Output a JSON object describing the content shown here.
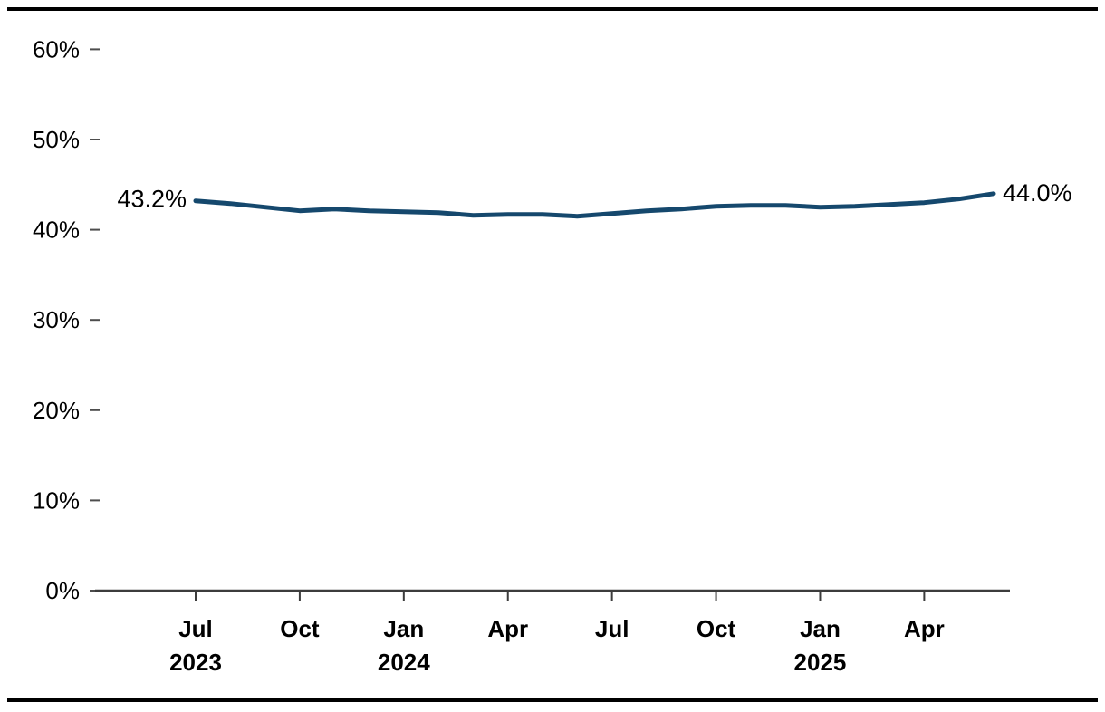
{
  "chart_data": {
    "type": "line",
    "title": "",
    "xlabel": "",
    "ylabel": "",
    "x": [
      "Jul 2023",
      "Aug 2023",
      "Sep 2023",
      "Oct 2023",
      "Nov 2023",
      "Dec 2023",
      "Jan 2024",
      "Feb 2024",
      "Mar 2024",
      "Apr 2024",
      "May 2024",
      "Jun 2024",
      "Jul 2024",
      "Aug 2024",
      "Sep 2024",
      "Oct 2024",
      "Nov 2024",
      "Dec 2024",
      "Jan 2025",
      "Feb 2025",
      "Mar 2025",
      "Apr 2025",
      "May 2025",
      "Jun 2025"
    ],
    "series": [
      {
        "name": "percent",
        "values": [
          43.2,
          42.9,
          42.5,
          42.1,
          42.3,
          42.1,
          42.0,
          41.9,
          41.6,
          41.7,
          41.7,
          41.5,
          41.8,
          42.1,
          42.3,
          42.6,
          42.7,
          42.7,
          42.5,
          42.6,
          42.8,
          43.0,
          43.4,
          44.0
        ]
      }
    ],
    "ylim": [
      0,
      60
    ],
    "ytick_step": 10,
    "ytick_labels": [
      "0%",
      "10%",
      "20%",
      "30%",
      "40%",
      "50%",
      "60%"
    ],
    "xticks": [
      {
        "month": "Jul",
        "year": "2023",
        "index": 0
      },
      {
        "month": "Oct",
        "year": "",
        "index": 3
      },
      {
        "month": "Jan",
        "year": "2024",
        "index": 6
      },
      {
        "month": "Apr",
        "year": "",
        "index": 9
      },
      {
        "month": "Jul",
        "year": "",
        "index": 12
      },
      {
        "month": "Oct",
        "year": "",
        "index": 15
      },
      {
        "month": "Jan",
        "year": "2025",
        "index": 18
      },
      {
        "month": "Apr",
        "year": "",
        "index": 21
      }
    ],
    "start_label": "43.2%",
    "end_label": "44.0%",
    "grid": false,
    "legend": "none"
  },
  "colors": {
    "line": "#15486D",
    "axis": "#3C3C3C",
    "tick": "#4D4D4D",
    "text": "#000000",
    "border": "#000000",
    "background": "#FFFFFF"
  }
}
